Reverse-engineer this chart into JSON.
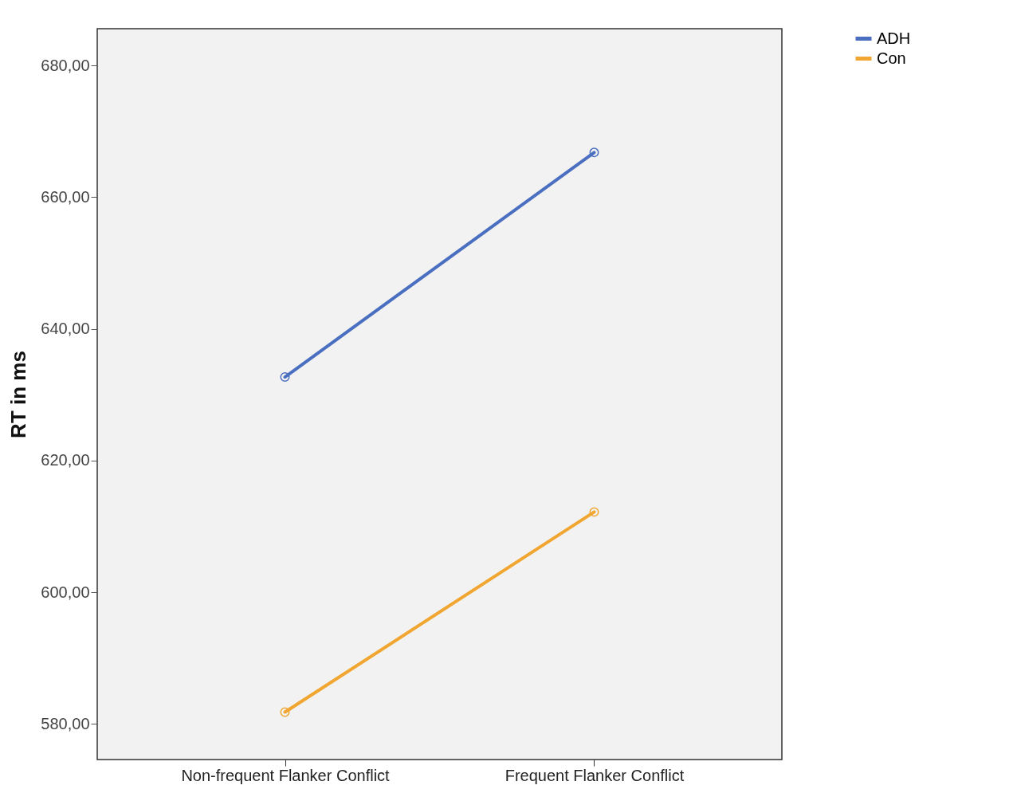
{
  "chart_data": {
    "type": "line",
    "ylabel": "RT in ms",
    "categories": [
      "Non-frequent Flanker Conflict",
      "Frequent Flanker Conflict"
    ],
    "series": [
      {
        "name": "ADH",
        "color": "#4a6fc0",
        "values": [
          632.7,
          666.8
        ]
      },
      {
        "name": "Con",
        "color": "#f0a630",
        "values": [
          581.8,
          612.2
        ]
      }
    ],
    "ylim": [
      574.6,
      685.6
    ],
    "yticks": [
      {
        "value": 580,
        "label": "580,00"
      },
      {
        "value": 600,
        "label": "600,00"
      },
      {
        "value": 620,
        "label": "620,00"
      },
      {
        "value": 640,
        "label": "640,00"
      },
      {
        "value": 660,
        "label": "660,00"
      },
      {
        "value": 680,
        "label": "680,00"
      }
    ],
    "grid": false,
    "legend": "top right",
    "marker": "circle",
    "line_style": "solid"
  }
}
